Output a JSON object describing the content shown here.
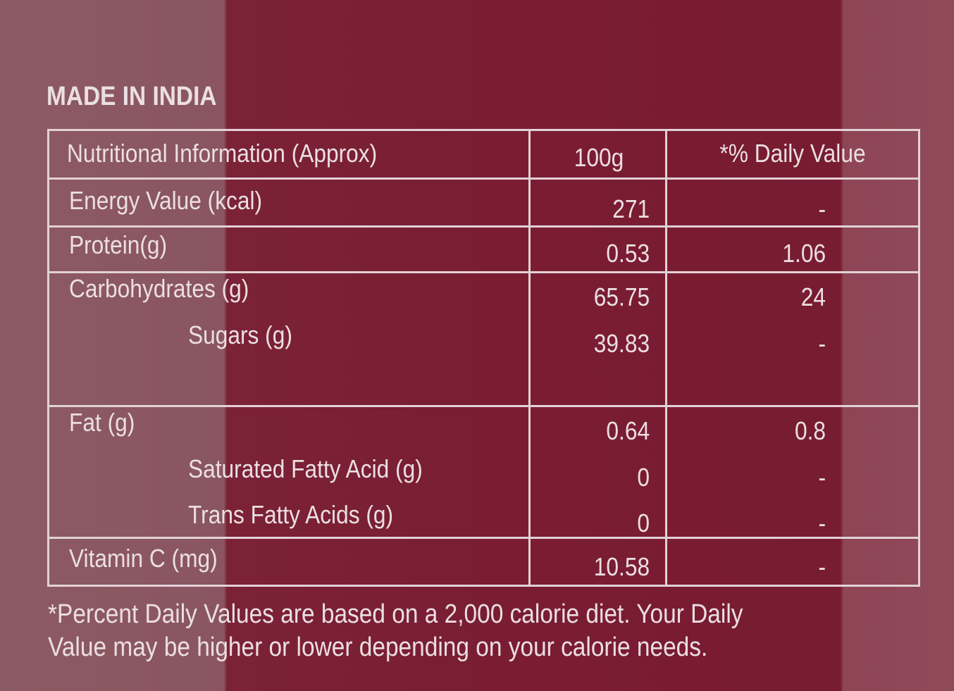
{
  "header": {
    "title": "MADE IN INDIA"
  },
  "table": {
    "columns": [
      "Nutritional Information (Approx)",
      "100g",
      "*% Daily Value"
    ],
    "rows": [
      [
        "Energy Value (kcal)",
        "271",
        "-"
      ],
      [
        "Protein(g)",
        "0.53",
        "1.06"
      ],
      [
        "Carbohydrates (g)",
        "65.75",
        "24"
      ],
      [
        "Sugars (g)",
        "39.83",
        "-"
      ],
      [
        "Fat (g)",
        "0.64",
        "0.8"
      ],
      [
        "Saturated Fatty Acid (g)",
        "0",
        "-"
      ],
      [
        "Trans Fatty Acids (g)",
        "0",
        "-"
      ],
      [
        "Vitamin C (mg)",
        "10.58",
        "-"
      ]
    ]
  },
  "footnote": {
    "lines": [
      "*Percent Daily Values are based on a 2,000 calorie diet. Your Daily",
      "Value may be higher or lower depending on your calorie needs."
    ]
  }
}
